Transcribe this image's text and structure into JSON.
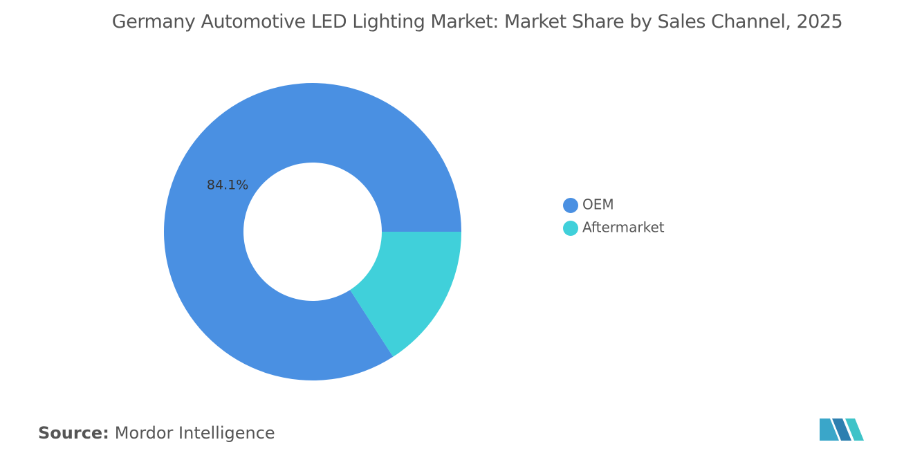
{
  "chart_data": {
    "type": "donut",
    "title": "Germany Automotive LED Lighting Market: Market Share by Sales Channel, 2025",
    "categories": [
      "OEM",
      "Aftermarket"
    ],
    "values": [
      84.1,
      15.9
    ],
    "value_labels": [
      "84.1%",
      null
    ],
    "colors": [
      "#4a90e2",
      "#40d0da"
    ],
    "legend": "right",
    "source_label": "Source:",
    "source": "Mordor Intelligence"
  }
}
